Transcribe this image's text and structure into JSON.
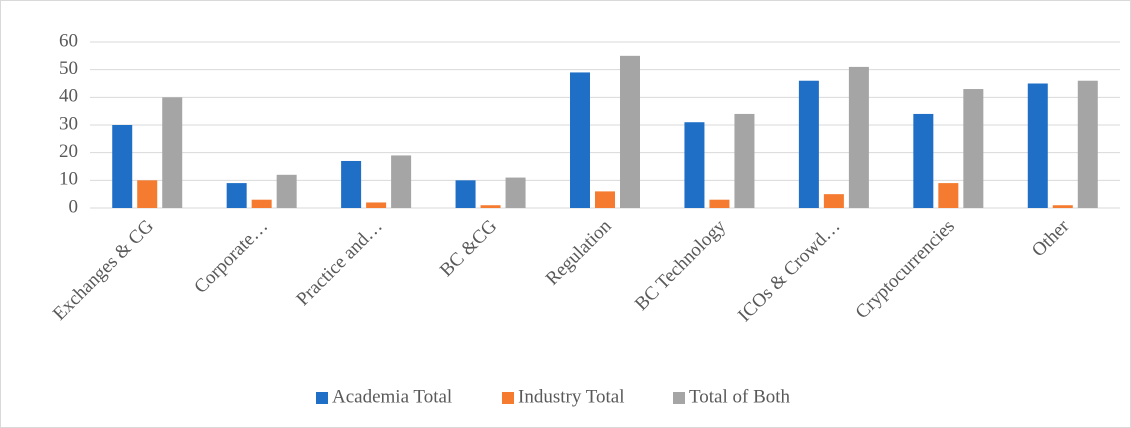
{
  "chart_data": {
    "type": "bar",
    "categories": [
      "Exchanges & CG",
      "Corporate…",
      "Practice and…",
      "BC &CG",
      "Regulation",
      "BC Technology",
      "ICOs & Crowd…",
      "Cryptocurrencies",
      "Other"
    ],
    "series": [
      {
        "name": "Academia Total",
        "color": "#1f6fc7",
        "values": [
          30,
          9,
          17,
          10,
          49,
          31,
          46,
          34,
          45
        ]
      },
      {
        "name": "Industry Total",
        "color": "#f47b2f",
        "values": [
          10,
          3,
          2,
          1,
          6,
          3,
          5,
          9,
          1
        ]
      },
      {
        "name": "Total of Both",
        "color": "#a5a5a5",
        "values": [
          40,
          12,
          19,
          11,
          55,
          34,
          51,
          43,
          46
        ]
      }
    ],
    "ylim": [
      0,
      60
    ],
    "yticks": [
      0,
      10,
      20,
      30,
      40,
      50,
      60
    ],
    "grid": true,
    "legend": "bottom"
  }
}
